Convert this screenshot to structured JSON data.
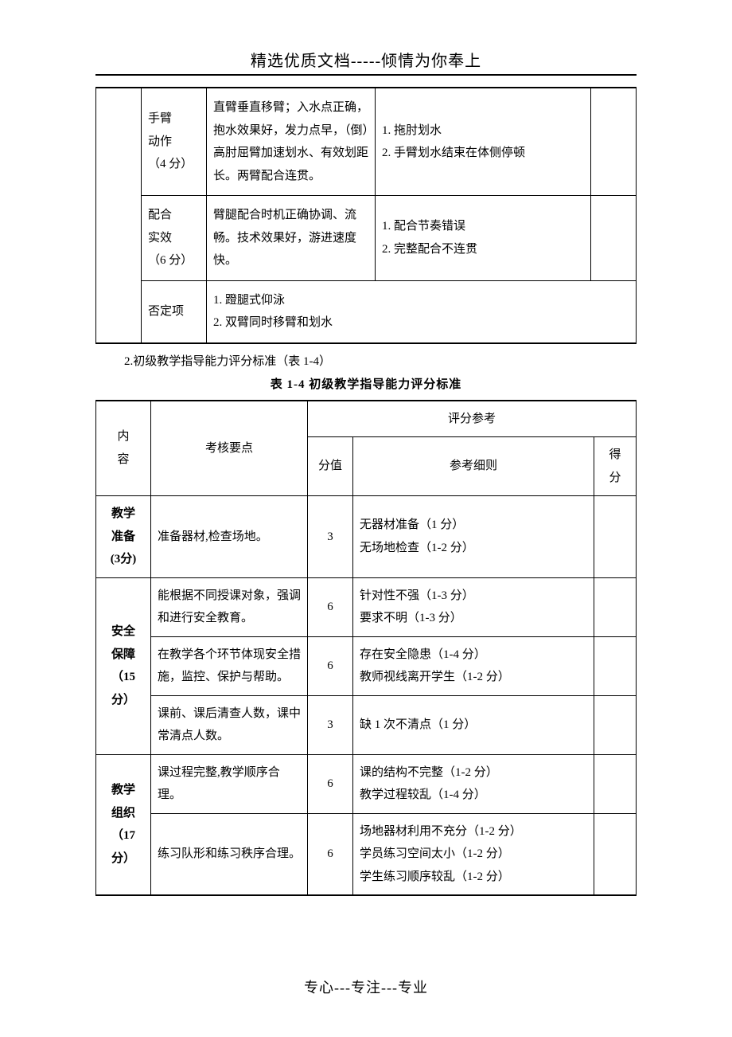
{
  "header": "精选优质文档-----倾情为你奉上",
  "footer": "专心---专注---专业",
  "table1": {
    "rows": [
      {
        "label": "手臂\n动作\n（4 分）",
        "desc": "直臂垂直移臂；入水点正确，抱水效果好，发力点早，（倒）高肘屈臂加速划水、有效划距长。两臂配合连贯。",
        "ref": "1. 拖肘划水\n2. 手臂划水结束在体侧停顿"
      },
      {
        "label": "配合\n实效\n（6 分）",
        "desc": "臂腿配合时机正确协调、流畅。技术效果好，游进速度快。",
        "ref": "1. 配合节奏错误\n2. 完整配合不连贯"
      },
      {
        "label": "否定项",
        "desc": "1. 蹬腿式仰泳\n2. 双臂同时移臂和划水"
      }
    ]
  },
  "section_line": "2.初级教学指导能力评分标准（表 1-4）",
  "table2_title": "表 1-4  初级教学指导能力评分标准",
  "table2": {
    "headers": {
      "content": "内\n容",
      "essentials": "考核要点",
      "ref_group": "评分参考",
      "score": "分值",
      "detail": "参考细则",
      "got": "得\n分"
    },
    "body": [
      {
        "label": "教学\n准备\n(3分)",
        "rows": [
          {
            "essentials": "准备器材,检查场地。",
            "score": "3",
            "detail": "无器材准备（1 分）\n无场地检查（1-2 分）"
          }
        ]
      },
      {
        "label": "安全\n保障\n（15\n分）",
        "rows": [
          {
            "essentials": "能根据不同授课对象，强调和进行安全教育。",
            "score": "6",
            "detail": "针对性不强（1-3 分）\n要求不明（1-3 分）"
          },
          {
            "essentials": "在教学各个环节体现安全措施，监控、保护与帮助。",
            "score": "6",
            "detail": "存在安全隐患（1-4 分）\n教师视线离开学生（1-2 分）"
          },
          {
            "essentials": "课前、课后清查人数，课中常清点人数。",
            "score": "3",
            "detail": "缺 1 次不清点（1 分）"
          }
        ]
      },
      {
        "label": "教学\n组织\n（17\n分）",
        "rows": [
          {
            "essentials": "课过程完整,教学顺序合理。",
            "score": "6",
            "detail": "课的结构不完整（1-2 分）\n教学过程较乱（1-4 分）"
          },
          {
            "essentials": "练习队形和练习秩序合理。",
            "score": "6",
            "detail": "场地器材利用不充分（1-2 分）\n学员练习空间太小（1-2 分）\n学生练习顺序较乱（1-2 分）"
          }
        ]
      }
    ]
  }
}
